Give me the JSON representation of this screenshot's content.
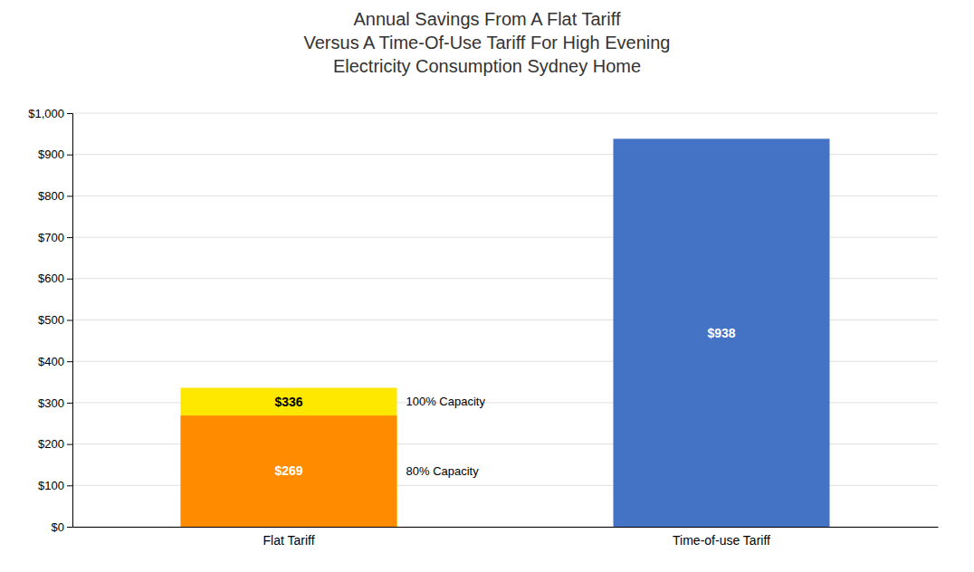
{
  "chart_data": {
    "type": "bar",
    "title": "Annual Savings From A Flat Tariff\nVersus A Time-Of-Use Tariff For High Evening\nElectricity Consumption Sydney Home",
    "categories": [
      "Flat Tariff",
      "Time-of-use Tariff"
    ],
    "series": [
      {
        "name": "80% Capacity",
        "color": "#FF8C00",
        "values": [
          269,
          null
        ],
        "value_labels": [
          "$269",
          null
        ]
      },
      {
        "name": "100% Capacity",
        "color": "#FFE800",
        "values": [
          336,
          null
        ],
        "value_labels": [
          "$336",
          null
        ]
      },
      {
        "color": "#4472C4",
        "values": [
          null,
          938
        ],
        "value_labels": [
          null,
          "$938"
        ]
      }
    ],
    "ylim": [
      0,
      1000
    ],
    "yticks": [
      {
        "value": 0,
        "label": "$0"
      },
      {
        "value": 100,
        "label": "$100"
      },
      {
        "value": 200,
        "label": "$200"
      },
      {
        "value": 300,
        "label": "$300"
      },
      {
        "value": 400,
        "label": "$400"
      },
      {
        "value": 500,
        "label": "$500"
      },
      {
        "value": 600,
        "label": "$600"
      },
      {
        "value": 700,
        "label": "$700"
      },
      {
        "value": 800,
        "label": "$800"
      },
      {
        "value": 900,
        "label": "$900"
      },
      {
        "value": 1000,
        "label": "$1,000"
      }
    ],
    "grid": true,
    "data_labels": true
  }
}
